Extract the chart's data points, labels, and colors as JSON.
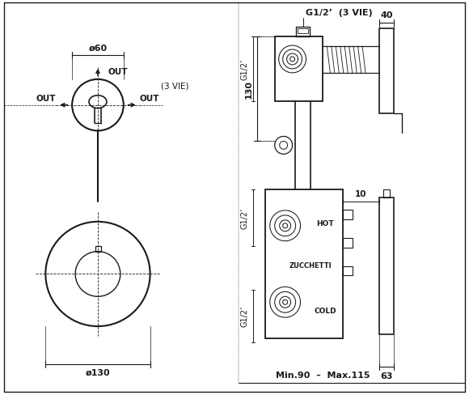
{
  "bg_color": "#ffffff",
  "line_color": "#1a1a1a",
  "fig_width": 5.8,
  "fig_height": 4.89,
  "dpi": 100,
  "annotations": {
    "phi60": "ø60",
    "phi130": "ø130",
    "out_top": "OUT",
    "out_left": "OUT",
    "out_right": "OUT",
    "three_vie_left": "(3 VIE)",
    "g12_top": "G1/2’  (3 VIE)",
    "g12_left_top": "G1/2’",
    "g12_left_mid": "G1/2’",
    "g12_left_bot": "G1/2’",
    "dim_40": "40",
    "dim_10": "10",
    "dim_130": "130",
    "dim_63": "63",
    "hot": "HOT",
    "cold": "COLD",
    "zucchetti": "ZUCCHETTI",
    "min_max": "Min.90  –  Max.115"
  }
}
